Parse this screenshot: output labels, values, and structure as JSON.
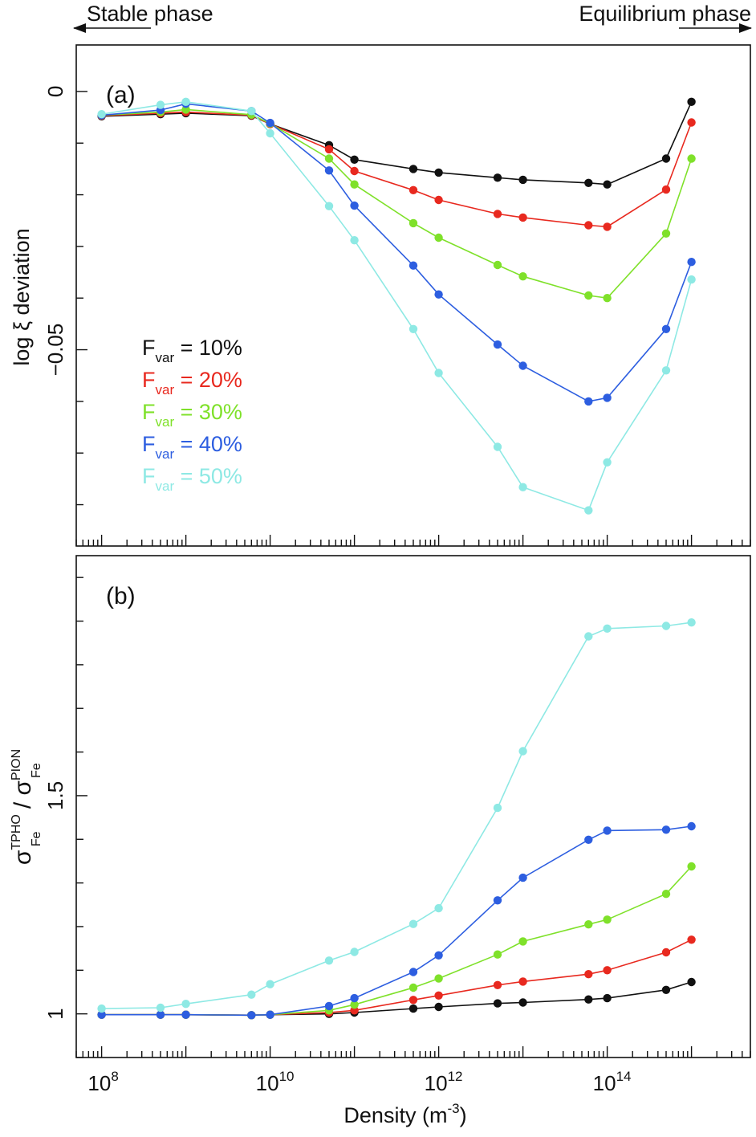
{
  "colors": {
    "10": "#111111",
    "20": "#e8291f",
    "30": "#7fe12a",
    "40": "#2d5ee0",
    "50": "#8ee9e4"
  },
  "header": {
    "stable_label": "Stable phase",
    "equilibrium_label": "Equilibrium phase"
  },
  "chart_data": [
    {
      "type": "line",
      "panel_label": "(a)",
      "ylabel": "log ξ deviation",
      "xlabel": "",
      "x_scale": "log",
      "xlim": [
        50000000.0,
        5000000000000000.0
      ],
      "ylim": [
        -0.088,
        0.009
      ],
      "yticks": [
        {
          "value": 0,
          "label": "0"
        },
        {
          "value": -0.05,
          "label": "−0.05"
        }
      ],
      "x": [
        100000000.0,
        500000000.0,
        1000000000.0,
        6000000000.0,
        10000000000.0,
        50000000000.0,
        100000000000.0,
        500000000000.0,
        1000000000000.0,
        5000000000000.0,
        10000000000000.0,
        60000000000000.0,
        100000000000000.0,
        500000000000000.0,
        1000000000000000.0
      ],
      "legend": {
        "position": "middle-left",
        "entries": [
          {
            "key": "10",
            "base": "F",
            "sub": "var",
            "rest": " = 10%"
          },
          {
            "key": "20",
            "base": "F",
            "sub": "var",
            "rest": " = 20%"
          },
          {
            "key": "30",
            "base": "F",
            "sub": "var",
            "rest": " = 30%"
          },
          {
            "key": "40",
            "base": "F",
            "sub": "var",
            "rest": " = 40%"
          },
          {
            "key": "50",
            "base": "F",
            "sub": "var",
            "rest": " = 50%"
          }
        ]
      },
      "series": [
        {
          "key": "10",
          "values": [
            -0.0048,
            -0.0044,
            -0.0042,
            -0.0047,
            -0.0063,
            -0.0104,
            -0.0132,
            -0.015,
            -0.0157,
            -0.0167,
            -0.0171,
            -0.0177,
            -0.018,
            -0.013,
            -0.002
          ]
        },
        {
          "key": "20",
          "values": [
            -0.0047,
            -0.0042,
            -0.004,
            -0.0046,
            -0.0063,
            -0.0112,
            -0.0154,
            -0.0191,
            -0.021,
            -0.0237,
            -0.0244,
            -0.0259,
            -0.0262,
            -0.019,
            -0.006
          ]
        },
        {
          "key": "30",
          "values": [
            -0.0046,
            -0.004,
            -0.0035,
            -0.0045,
            -0.0062,
            -0.013,
            -0.018,
            -0.0255,
            -0.0283,
            -0.0336,
            -0.0358,
            -0.0395,
            -0.04,
            -0.0275,
            -0.013
          ]
        },
        {
          "key": "40",
          "values": [
            -0.0046,
            -0.0036,
            -0.0024,
            -0.0038,
            -0.0061,
            -0.0153,
            -0.0221,
            -0.0337,
            -0.0393,
            -0.049,
            -0.0531,
            -0.06,
            -0.0593,
            -0.046,
            -0.033
          ]
        },
        {
          "key": "50",
          "values": [
            -0.0044,
            -0.0026,
            -0.002,
            -0.0038,
            -0.0081,
            -0.0222,
            -0.0288,
            -0.046,
            -0.0545,
            -0.0688,
            -0.0766,
            -0.0811,
            -0.0718,
            -0.054,
            -0.0364
          ]
        }
      ]
    },
    {
      "type": "line",
      "panel_label": "(b)",
      "ylabel": {
        "part1": "σ",
        "sup1": "TPHO",
        "sub1": "Fe",
        "mid": " / σ",
        "sup2": "PION",
        "sub2": "Fe"
      },
      "xlabel": {
        "text": "Density (m",
        "sup": "-3",
        "close": ")"
      },
      "x_scale": "log",
      "xlim": [
        50000000.0,
        5000000000000000.0
      ],
      "ylim": [
        0.9,
        2.05
      ],
      "yticks": [
        {
          "value": 1,
          "label": "1"
        },
        {
          "value": 1.5,
          "label": "1.5"
        }
      ],
      "xticks": [
        {
          "value": 100000000.0,
          "base": "10",
          "exp": "8"
        },
        {
          "value": 10000000000.0,
          "base": "10",
          "exp": "10"
        },
        {
          "value": 1000000000000.0,
          "base": "10",
          "exp": "12"
        },
        {
          "value": 100000000000000.0,
          "base": "10",
          "exp": "14"
        }
      ],
      "x": [
        100000000.0,
        500000000.0,
        1000000000.0,
        6000000000.0,
        10000000000.0,
        50000000000.0,
        100000000000.0,
        500000000000.0,
        1000000000000.0,
        5000000000000.0,
        10000000000000.0,
        60000000000000.0,
        100000000000000.0,
        500000000000000.0,
        1000000000000000.0
      ],
      "series": [
        {
          "key": "10",
          "values": [
            0.998,
            0.998,
            0.998,
            0.997,
            0.998,
            1.0,
            1.003,
            1.012,
            1.016,
            1.024,
            1.026,
            1.033,
            1.036,
            1.055,
            1.073
          ]
        },
        {
          "key": "20",
          "values": [
            0.998,
            0.998,
            0.998,
            0.997,
            0.998,
            1.003,
            1.008,
            1.032,
            1.042,
            1.066,
            1.074,
            1.091,
            1.1,
            1.141,
            1.17
          ]
        },
        {
          "key": "30",
          "values": [
            0.998,
            0.998,
            0.998,
            0.997,
            0.998,
            1.008,
            1.021,
            1.06,
            1.081,
            1.136,
            1.166,
            1.205,
            1.216,
            1.275,
            1.338
          ]
        },
        {
          "key": "40",
          "values": [
            0.998,
            0.998,
            0.998,
            0.997,
            0.998,
            1.018,
            1.036,
            1.096,
            1.134,
            1.26,
            1.312,
            1.399,
            1.42,
            1.422,
            1.43
          ]
        },
        {
          "key": "50",
          "values": [
            1.012,
            1.014,
            1.023,
            1.044,
            1.068,
            1.122,
            1.142,
            1.206,
            1.242,
            1.472,
            1.602,
            1.865,
            1.883,
            1.889,
            1.897
          ]
        }
      ]
    }
  ]
}
